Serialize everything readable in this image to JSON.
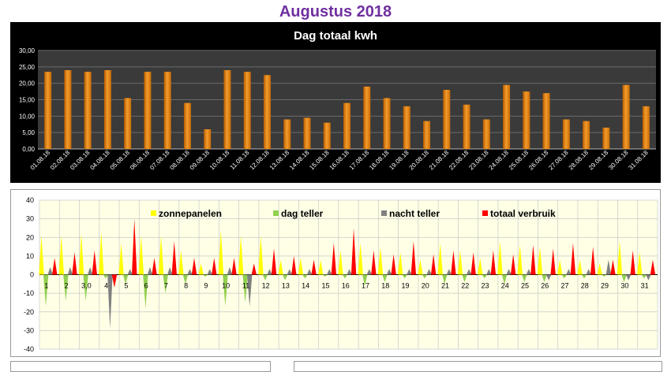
{
  "page": {
    "title": "Augustus 2018"
  },
  "chart_data": [
    {
      "type": "bar",
      "title": "Dag totaal kwh",
      "xlabel": "",
      "ylabel": "",
      "ylim": [
        0,
        30
      ],
      "yticks": [
        "0,00",
        "5,00",
        "10,00",
        "15,00",
        "20,00",
        "25,00",
        "30,00"
      ],
      "grid": true,
      "background": "#000000",
      "plot_background": "#3a3a3a",
      "bar_color": "#f39c2c",
      "categories": [
        "01.08.18",
        "02.08.18",
        "03.08.18",
        "04.08.18",
        "05.08.18",
        "06.08.18",
        "07.08.18",
        "08.08.18",
        "09.08.18",
        "10.08.18",
        "11.08.18",
        "12.08.18",
        "13.08.18",
        "14.08.18",
        "15.08.18",
        "16.08.18",
        "17.08.18",
        "18.08.18",
        "19.08.18",
        "20.08.18",
        "21.08.18",
        "22.08.18",
        "23.08.18",
        "24.08.18",
        "25.08.18",
        "26.08.18",
        "27.08.18",
        "28.08.18",
        "29.08.18",
        "30.08.18",
        "31.08.18"
      ],
      "values": [
        23.5,
        24,
        23.5,
        24,
        15.5,
        23.5,
        23.5,
        14,
        6,
        24,
        23.5,
        22.5,
        9,
        9.5,
        8,
        14,
        19,
        15.5,
        13,
        8.5,
        18,
        13.5,
        9,
        19.5,
        17.5,
        17,
        9,
        8.5,
        6.5,
        19.5,
        13
      ]
    },
    {
      "type": "area",
      "title": "",
      "ylim": [
        -40,
        40
      ],
      "yticks": [
        "-40",
        "-30",
        "-20",
        "-10",
        "0",
        "10",
        "20",
        "30",
        "40"
      ],
      "grid": true,
      "legend_position": "top",
      "plot_background": "#ffffe6",
      "categories": [
        "1",
        "2",
        "3,0",
        "4",
        "5",
        "6",
        "7",
        "8",
        "9",
        "10",
        "11",
        "12",
        "13",
        "14",
        "15",
        "16",
        "17",
        "18",
        "19",
        "20",
        "21",
        "22",
        "23",
        "24",
        "25",
        "26",
        "27",
        "28",
        "29",
        "30",
        "31"
      ],
      "series": [
        {
          "name": "zonnepanelen",
          "color": "#ffff00",
          "values": [
            21,
            21,
            22,
            23,
            17,
            21,
            21,
            13,
            6,
            24,
            21,
            21,
            8,
            9,
            8,
            13,
            17,
            15,
            12,
            8,
            17,
            13,
            9,
            18,
            16,
            15,
            8,
            8,
            6,
            18,
            12
          ]
        },
        {
          "name": "dag teller",
          "color": "#92d050",
          "values": [
            -17,
            -14,
            -14,
            -2,
            -5,
            -18,
            -10,
            -5,
            -1,
            -17,
            -15,
            -3,
            -3,
            -2,
            -1,
            -2,
            -6,
            -4,
            -2,
            -2,
            -5,
            -4,
            -2,
            -5,
            -4,
            -4,
            -2,
            -2,
            -1,
            -4,
            -2
          ]
        },
        {
          "name": "nacht teller",
          "color": "#808080",
          "values": [
            4,
            4,
            4,
            -29,
            3,
            4,
            4,
            3,
            3,
            4,
            -17,
            3,
            3,
            3,
            3,
            3,
            3,
            3,
            3,
            3,
            3,
            3,
            3,
            3,
            3,
            -3,
            3,
            3,
            8,
            -3,
            -3
          ]
        },
        {
          "name": "totaal verbruik",
          "color": "#ff0000",
          "values": [
            9,
            12,
            13,
            -7,
            30,
            9,
            18,
            9,
            9,
            9,
            6,
            14,
            10,
            8,
            17,
            25,
            13,
            11,
            18,
            11,
            13,
            12,
            13,
            11,
            16,
            14,
            17,
            15,
            8,
            13,
            8
          ]
        }
      ]
    }
  ]
}
